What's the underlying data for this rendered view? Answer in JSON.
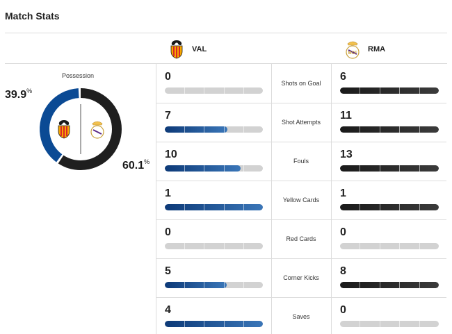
{
  "header": {
    "title": "Match Stats"
  },
  "teams": {
    "home": {
      "abbr": "VAL",
      "color": "#0b4a94",
      "crest": "valencia-crest"
    },
    "away": {
      "abbr": "RMA",
      "color": "#1f1f1f",
      "crest": "real-madrid-crest"
    }
  },
  "possession": {
    "label": "Possession",
    "home_pct": "39.9",
    "away_pct": "60.1",
    "home_value": 39.9,
    "away_value": 60.1,
    "pct_symbol": "%"
  },
  "stats": [
    {
      "label": "Shots on Goal",
      "home": "0",
      "away": "6",
      "home_fill": 0.0,
      "away_fill": 1.0
    },
    {
      "label": "Shot Attempts",
      "home": "7",
      "away": "11",
      "home_fill": 0.64,
      "away_fill": 1.0
    },
    {
      "label": "Fouls",
      "home": "10",
      "away": "13",
      "home_fill": 0.77,
      "away_fill": 1.0
    },
    {
      "label": "Yellow Cards",
      "home": "1",
      "away": "1",
      "home_fill": 1.0,
      "away_fill": 1.0
    },
    {
      "label": "Red Cards",
      "home": "0",
      "away": "0",
      "home_fill": 0.0,
      "away_fill": 0.0
    },
    {
      "label": "Corner Kicks",
      "home": "5",
      "away": "8",
      "home_fill": 0.63,
      "away_fill": 1.0
    },
    {
      "label": "Saves",
      "home": "4",
      "away": "0",
      "home_fill": 1.0,
      "away_fill": 0.0
    }
  ]
}
